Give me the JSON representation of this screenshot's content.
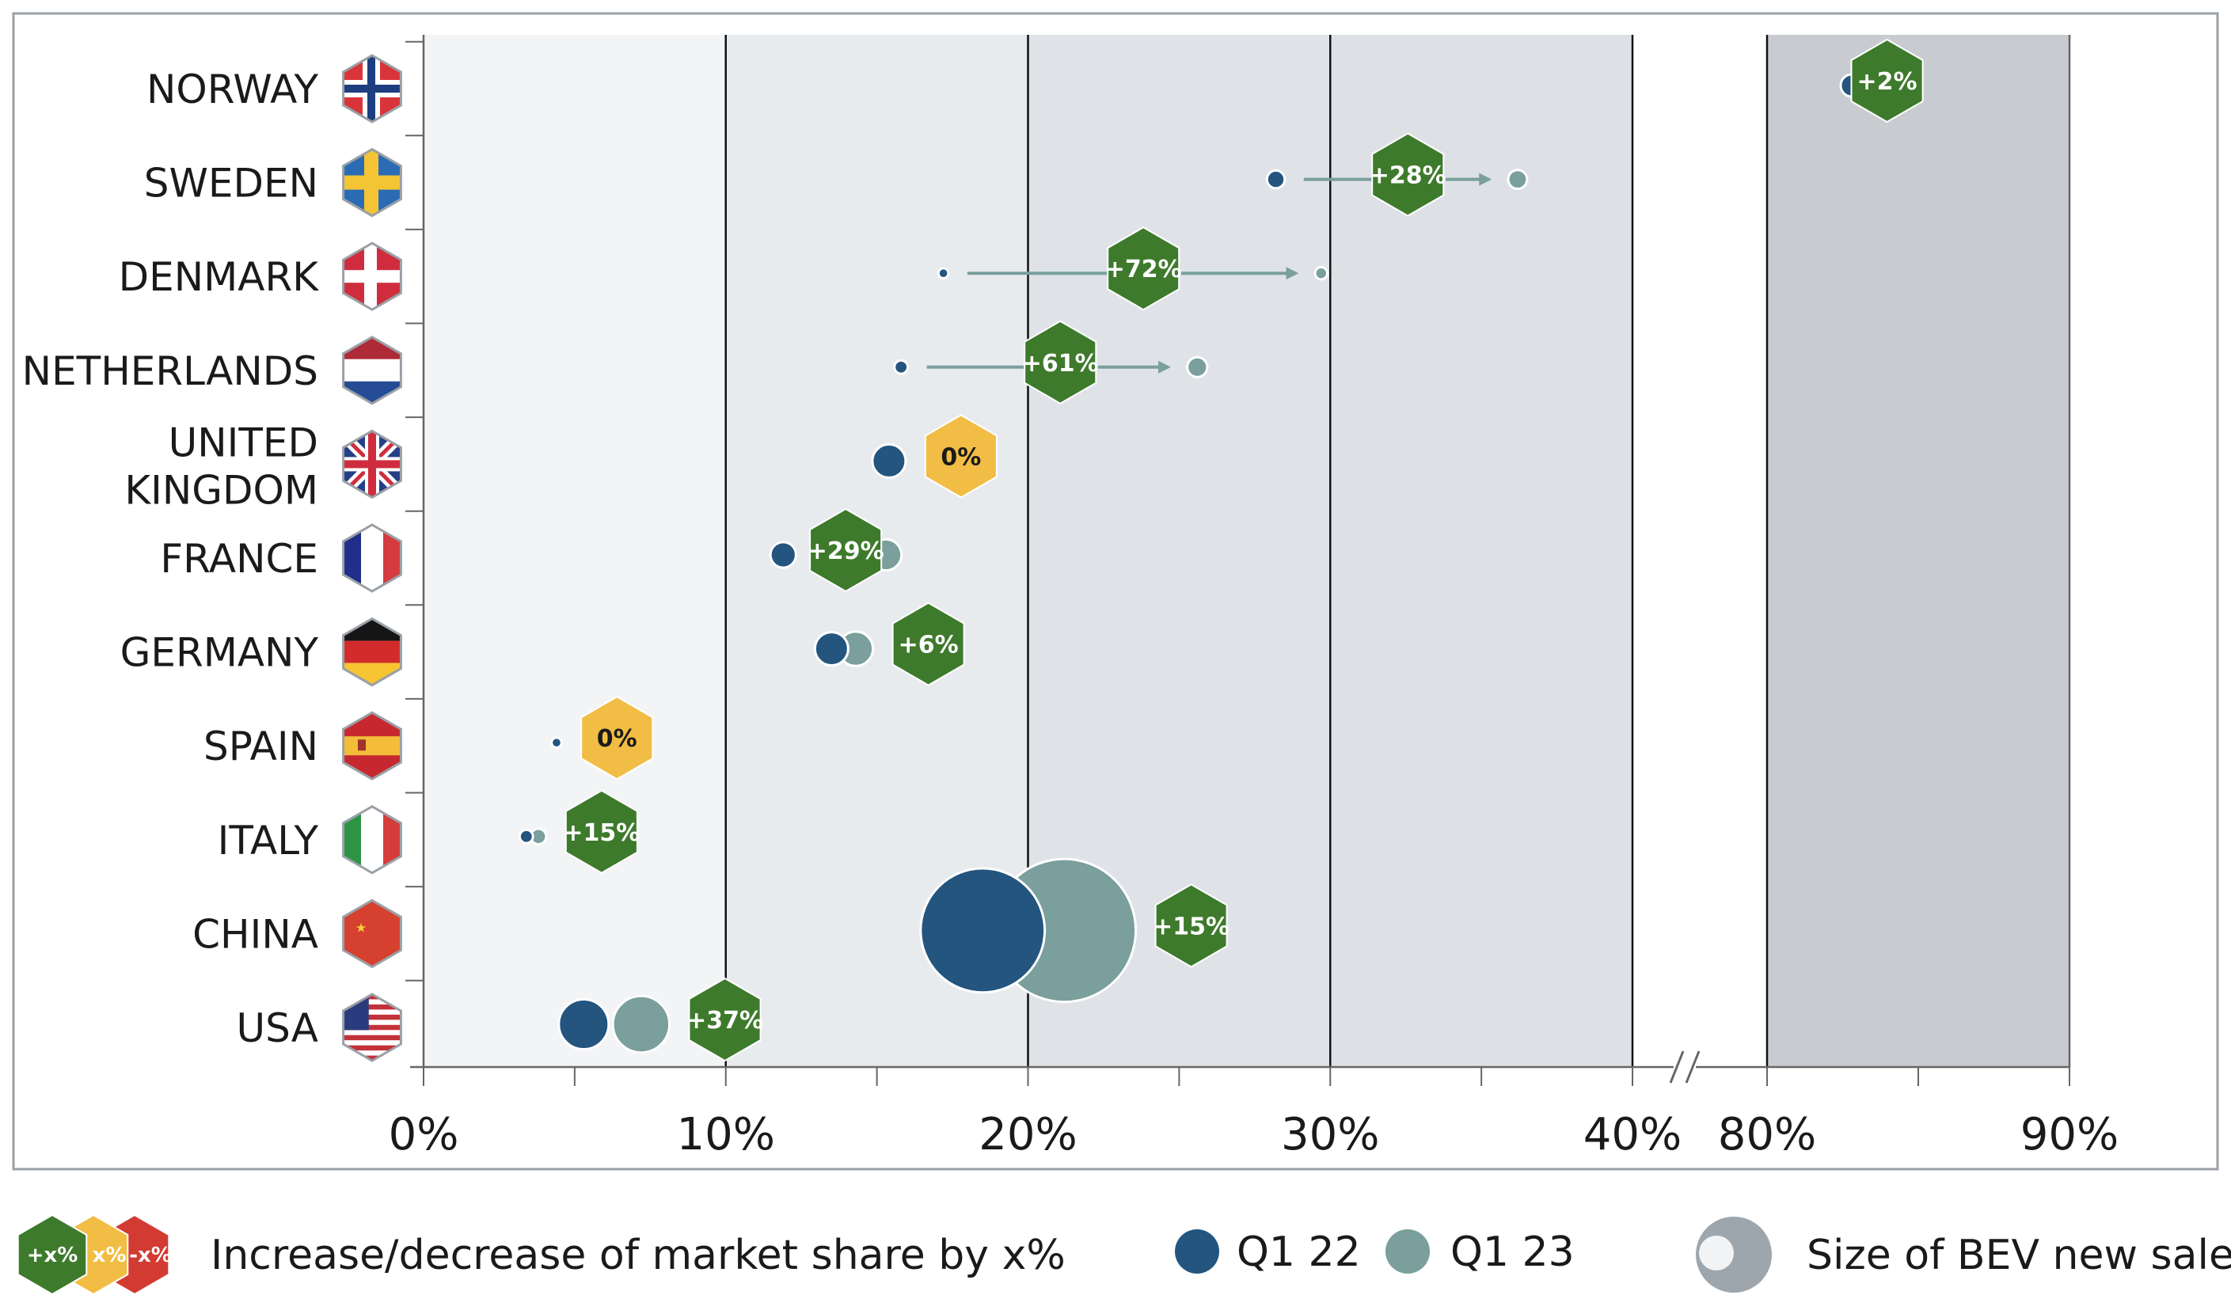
{
  "chart_data": {
    "type": "scatter",
    "title": "",
    "xlabel": "",
    "ylabel": "",
    "x_axis": {
      "segments": [
        {
          "range": [
            0,
            40
          ],
          "tick_labels": [
            "0%",
            "10%",
            "20%",
            "30%",
            "40%"
          ]
        },
        {
          "range": [
            80,
            90
          ],
          "tick_labels": [
            "80%",
            "90%"
          ]
        }
      ],
      "broken": true
    },
    "countries": [
      {
        "name": "NORWAY",
        "flag": "norway-flag-icon",
        "q1_22": 82.8,
        "q1_23": 84.4,
        "size_q1_22": 1.0,
        "size_q1_23": 1.0,
        "change": "+2%",
        "status": "increase"
      },
      {
        "name": "SWEDEN",
        "flag": "sweden-flag-icon",
        "q1_22": 28.2,
        "q1_23": 36.2,
        "size_q1_22": 0.8,
        "size_q1_23": 0.85,
        "change": "+28%",
        "status": "increase"
      },
      {
        "name": "DENMARK",
        "flag": "denmark-flag-icon",
        "q1_22": 17.2,
        "q1_23": 29.7,
        "size_q1_22": 0.45,
        "size_q1_23": 0.55,
        "change": "+72%",
        "status": "increase"
      },
      {
        "name": "NETHERLANDS",
        "flag": "netherlands-flag-icon",
        "q1_22": 15.8,
        "q1_23": 25.6,
        "size_q1_22": 0.6,
        "size_q1_23": 0.9,
        "change": "+61%",
        "status": "increase"
      },
      {
        "name": "UNITED KINGDOM",
        "flag": "uk-flag-icon",
        "q1_22": 15.4,
        "q1_23": 15.4,
        "size_q1_22": 1.5,
        "size_q1_23": 1.5,
        "change": "0%",
        "status": "neutral"
      },
      {
        "name": "FRANCE",
        "flag": "france-flag-icon",
        "q1_22": 11.9,
        "q1_23": 15.3,
        "size_q1_22": 1.15,
        "size_q1_23": 1.4,
        "change": "+29%",
        "status": "increase"
      },
      {
        "name": "GERMANY",
        "flag": "germany-flag-icon",
        "q1_22": 13.5,
        "q1_23": 14.3,
        "size_q1_22": 1.5,
        "size_q1_23": 1.55,
        "change": "+6%",
        "status": "increase"
      },
      {
        "name": "SPAIN",
        "flag": "spain-flag-icon",
        "q1_22": 4.4,
        "q1_23": 4.4,
        "size_q1_22": 0.45,
        "size_q1_23": 0.45,
        "change": "0%",
        "status": "neutral"
      },
      {
        "name": "ITALY",
        "flag": "italy-flag-icon",
        "q1_22": 3.4,
        "q1_23": 3.8,
        "size_q1_22": 0.6,
        "size_q1_23": 0.7,
        "change": "+15%",
        "status": "increase"
      },
      {
        "name": "CHINA",
        "flag": "china-flag-icon",
        "q1_22": 18.5,
        "q1_23": 21.2,
        "size_q1_22": 5.6,
        "size_q1_23": 6.45,
        "change": "+15%",
        "status": "increase"
      },
      {
        "name": "USA",
        "flag": "usa-flag-icon",
        "q1_22": 5.3,
        "q1_23": 7.2,
        "size_q1_22": 2.25,
        "size_q1_23": 2.55,
        "change": "+37%",
        "status": "increase"
      }
    ],
    "legend": {
      "change_badges": [
        "+x%",
        "x%",
        "-x%"
      ],
      "change_text": "Increase/decrease of market share by x%",
      "series": [
        {
          "name": "Q1 22",
          "color": "#23557f"
        },
        {
          "name": "Q1 23",
          "color": "#7a9f9c"
        }
      ],
      "size_text": "Size of BEV new sales"
    },
    "colors": {
      "q1_22": "#23557f",
      "q1_23": "#7a9f9c",
      "increase": "#3e7a2c",
      "neutral": "#f1bd44",
      "decrease": "#d33a32",
      "band_1": "#f3f4f6",
      "band_2": "#e8ebee",
      "band_3": "#dfe3e7",
      "band_4": "#dde1e5",
      "band_break": "#ffffff",
      "band_high": "#c8ccd1"
    }
  }
}
